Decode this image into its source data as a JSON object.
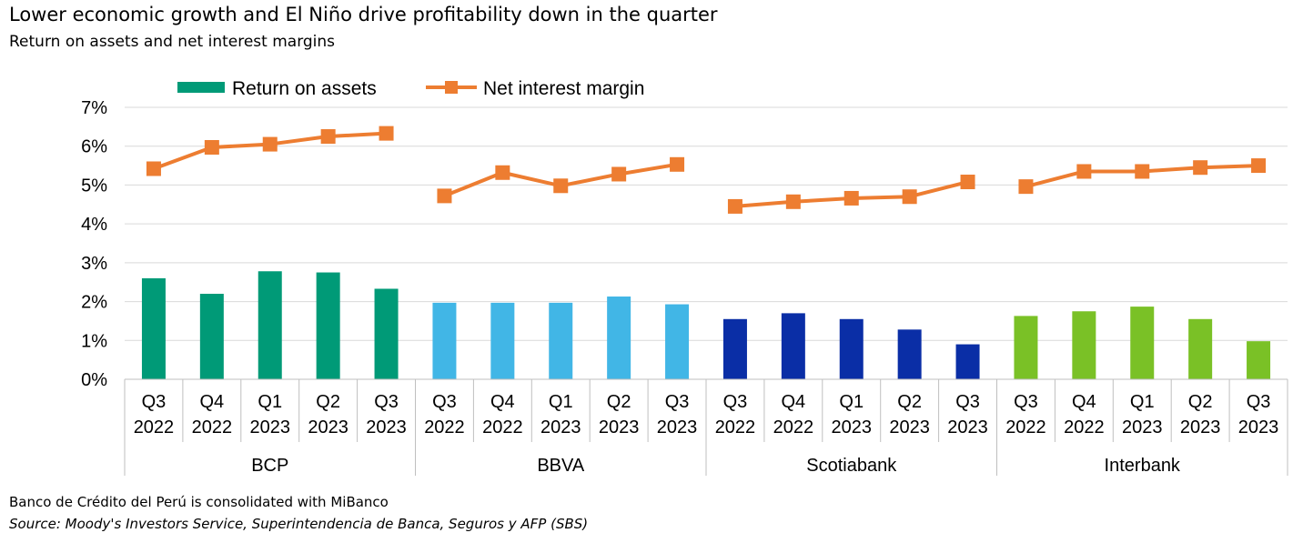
{
  "title": "Lower economic growth and El Niño drive profitability down in the quarter",
  "subtitle": "Return on assets and net interest margins",
  "note": "Banco de Crédito del Perú is consolidated with MiBanco",
  "source": "Source: Moody's Investors Service, Superintendencia de Banca, Seguros y AFP (SBS)",
  "chart_data": {
    "type": "bar",
    "legend_position": "top",
    "grid": true,
    "ylim": [
      0,
      7
    ],
    "y_ticks": [
      "0%",
      "1%",
      "2%",
      "3%",
      "4%",
      "5%",
      "6%",
      "7%"
    ],
    "colors": {
      "nim": "#ED7D31",
      "gridline": "#D9D9D9",
      "BCP": "#009A77",
      "BBVA": "#41B6E6",
      "Scotiabank": "#0A2EA6",
      "Interbank": "#7AC126"
    },
    "quarters": [
      "Q3",
      "Q4",
      "Q1",
      "Q2",
      "Q3"
    ],
    "years": [
      "2022",
      "2022",
      "2023",
      "2023",
      "2023"
    ],
    "banks": [
      "BCP",
      "BBVA",
      "Scotiabank",
      "Interbank"
    ],
    "series": [
      {
        "name": "Return on assets",
        "type": "bar",
        "values": [
          [
            2.6,
            2.2,
            2.78,
            2.75,
            2.33
          ],
          [
            1.97,
            1.97,
            1.97,
            2.13,
            1.93
          ],
          [
            1.55,
            1.7,
            1.55,
            1.28,
            0.9
          ],
          [
            1.63,
            1.75,
            1.87,
            1.55,
            0.98
          ]
        ]
      },
      {
        "name": "Net interest margin",
        "type": "line",
        "values": [
          [
            5.42,
            5.97,
            6.05,
            6.25,
            6.33
          ],
          [
            4.72,
            5.32,
            4.98,
            5.28,
            5.53
          ],
          [
            4.45,
            4.57,
            4.66,
            4.7,
            5.08
          ],
          [
            4.96,
            5.35,
            5.35,
            5.45,
            5.5
          ]
        ]
      }
    ]
  }
}
